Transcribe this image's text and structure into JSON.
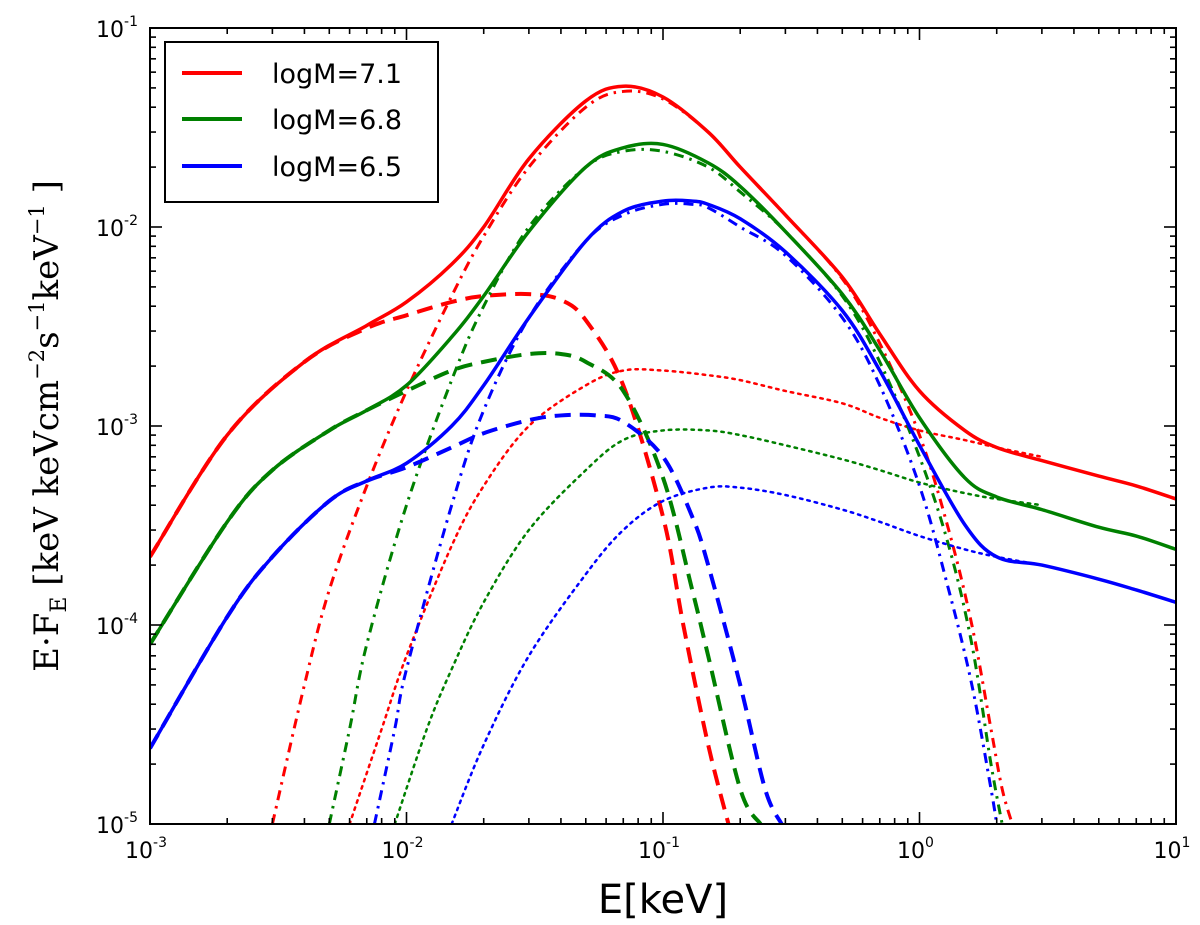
{
  "chart_data": {
    "type": "line",
    "scale": {
      "x": "log",
      "y": "log"
    },
    "xlim": [
      0.001,
      10
    ],
    "ylim": [
      1e-05,
      0.1
    ],
    "xlabel": "E[keV]",
    "ylabel": "E·F_E [keV keVcm^-2 s^-1 keV^-1]",
    "ylabel_parts": {
      "main": "E·F",
      "sub": "E",
      "units_open": " [keV keVcm",
      "exp1": "−2",
      "mid": "s",
      "exp2": "−1",
      "mid2": "keV",
      "exp3": "−1",
      "units_close": " ]"
    },
    "x_ticks": [
      {
        "value": 0.001,
        "base": "10",
        "exp": "-3"
      },
      {
        "value": 0.01,
        "base": "10",
        "exp": "-2"
      },
      {
        "value": 0.1,
        "base": "10",
        "exp": "-1"
      },
      {
        "value": 1,
        "base": "10",
        "exp": "0"
      },
      {
        "value": 10,
        "base": "10",
        "exp": "1"
      }
    ],
    "y_ticks": [
      {
        "value": 1e-05,
        "base": "10",
        "exp": "-5"
      },
      {
        "value": 0.0001,
        "base": "10",
        "exp": "-4"
      },
      {
        "value": 0.001,
        "base": "10",
        "exp": "-3"
      },
      {
        "value": 0.01,
        "base": "10",
        "exp": "-2"
      },
      {
        "value": 0.1,
        "base": "10",
        "exp": "-1"
      }
    ],
    "legend": {
      "position": "top-left",
      "entries": [
        {
          "label": "logM=7.1",
          "color": "#ff0000"
        },
        {
          "label": "logM=6.8",
          "color": "#008000"
        },
        {
          "label": "logM=6.5",
          "color": "#0000ff"
        }
      ]
    },
    "series": [
      {
        "name": "logM=7.1 total",
        "group": "logM=7.1",
        "component": "total",
        "color": "#ff0000",
        "style": "solid",
        "x": [
          0.001,
          0.002,
          0.004,
          0.007,
          0.01,
          0.015,
          0.02,
          0.03,
          0.05,
          0.07,
          0.1,
          0.15,
          0.2,
          0.3,
          0.5,
          0.7,
          1,
          1.5,
          2,
          3,
          5,
          7,
          10
        ],
        "y": [
          0.00022,
          0.0009,
          0.0021,
          0.0032,
          0.0042,
          0.0065,
          0.01,
          0.022,
          0.043,
          0.051,
          0.045,
          0.03,
          0.02,
          0.0115,
          0.0056,
          0.0029,
          0.0015,
          0.00095,
          0.00078,
          0.00067,
          0.00056,
          0.0005,
          0.00043
        ]
      },
      {
        "name": "logM=7.1 disk",
        "group": "logM=7.1",
        "component": "dashed",
        "color": "#ff0000",
        "style": "dashed",
        "x": [
          0.001,
          0.002,
          0.004,
          0.007,
          0.01,
          0.015,
          0.02,
          0.03,
          0.04,
          0.05,
          0.07,
          0.1,
          0.12,
          0.15,
          0.18
        ],
        "y": [
          0.00022,
          0.0009,
          0.0021,
          0.0031,
          0.0036,
          0.0042,
          0.0045,
          0.0046,
          0.0043,
          0.0034,
          0.0016,
          0.00035,
          0.0001,
          2.5e-05,
          1e-05
        ]
      },
      {
        "name": "logM=7.1 dash-dot",
        "group": "logM=7.1",
        "component": "dashdot",
        "color": "#ff0000",
        "style": "dashdot",
        "x": [
          0.003,
          0.004,
          0.005,
          0.007,
          0.01,
          0.015,
          0.02,
          0.03,
          0.05,
          0.07,
          0.1,
          0.15,
          0.2,
          0.3,
          0.5,
          0.7,
          1,
          1.3,
          1.6,
          1.9,
          2.1,
          2.3
        ],
        "y": [
          1e-05,
          5e-05,
          0.00015,
          0.0005,
          0.0015,
          0.0045,
          0.009,
          0.02,
          0.04,
          0.048,
          0.044,
          0.03,
          0.02,
          0.0115,
          0.0055,
          0.0026,
          0.0009,
          0.0003,
          0.0001,
          3e-05,
          1.5e-05,
          1e-05
        ]
      },
      {
        "name": "logM=7.1 dotted",
        "group": "logM=7.1",
        "component": "dotted",
        "color": "#ff0000",
        "style": "dotted",
        "x": [
          0.006,
          0.008,
          0.01,
          0.015,
          0.02,
          0.03,
          0.05,
          0.07,
          0.1,
          0.15,
          0.2,
          0.3,
          0.5,
          0.7,
          1,
          1.5,
          2,
          3
        ],
        "y": [
          1e-05,
          3e-05,
          7e-05,
          0.00025,
          0.0005,
          0.001,
          0.0016,
          0.0019,
          0.0019,
          0.0018,
          0.0017,
          0.0015,
          0.0013,
          0.0011,
          0.00095,
          0.00085,
          0.00078,
          0.0007
        ]
      },
      {
        "name": "logM=6.8 total",
        "group": "logM=6.8",
        "component": "total",
        "color": "#008000",
        "style": "solid",
        "x": [
          0.001,
          0.002,
          0.003,
          0.005,
          0.007,
          0.01,
          0.015,
          0.02,
          0.03,
          0.05,
          0.07,
          0.1,
          0.15,
          0.2,
          0.3,
          0.5,
          0.7,
          1,
          1.5,
          2,
          3,
          5,
          7,
          10
        ],
        "y": [
          8e-05,
          0.00033,
          0.0006,
          0.00095,
          0.0012,
          0.0016,
          0.0028,
          0.0045,
          0.0095,
          0.02,
          0.025,
          0.026,
          0.021,
          0.016,
          0.0095,
          0.0046,
          0.0024,
          0.0011,
          0.00055,
          0.00044,
          0.00038,
          0.00031,
          0.00028,
          0.00024
        ]
      },
      {
        "name": "logM=6.8 disk",
        "group": "logM=6.8",
        "component": "dashed",
        "color": "#008000",
        "style": "dashed",
        "x": [
          0.001,
          0.002,
          0.003,
          0.005,
          0.007,
          0.01,
          0.015,
          0.02,
          0.03,
          0.04,
          0.05,
          0.07,
          0.1,
          0.13,
          0.15,
          0.2,
          0.24
        ],
        "y": [
          8e-05,
          0.00033,
          0.0006,
          0.00095,
          0.0012,
          0.0015,
          0.0019,
          0.0021,
          0.0023,
          0.0023,
          0.0021,
          0.0015,
          0.00055,
          0.00015,
          7e-05,
          1.5e-05,
          1e-05
        ]
      },
      {
        "name": "logM=6.8 dash-dot",
        "group": "logM=6.8",
        "component": "dashdot",
        "color": "#008000",
        "style": "dashdot",
        "x": [
          0.005,
          0.006,
          0.007,
          0.01,
          0.015,
          0.02,
          0.03,
          0.05,
          0.07,
          0.1,
          0.15,
          0.2,
          0.3,
          0.5,
          0.7,
          1,
          1.3,
          1.6,
          1.9,
          2.1
        ],
        "y": [
          1e-05,
          3e-05,
          8e-05,
          0.0004,
          0.0017,
          0.004,
          0.01,
          0.02,
          0.024,
          0.024,
          0.02,
          0.015,
          0.0095,
          0.0045,
          0.0021,
          0.0007,
          0.00025,
          8e-05,
          2e-05,
          1e-05
        ]
      },
      {
        "name": "logM=6.8 dotted",
        "group": "logM=6.8",
        "component": "dotted",
        "color": "#008000",
        "style": "dotted",
        "x": [
          0.009,
          0.012,
          0.015,
          0.02,
          0.03,
          0.05,
          0.07,
          0.1,
          0.15,
          0.2,
          0.3,
          0.5,
          0.7,
          1,
          1.5,
          2,
          3
        ],
        "y": [
          1e-05,
          3e-05,
          6e-05,
          0.00013,
          0.0003,
          0.0006,
          0.00085,
          0.00095,
          0.00095,
          0.0009,
          0.0008,
          0.00068,
          0.0006,
          0.00052,
          0.00046,
          0.00043,
          0.0004
        ]
      },
      {
        "name": "logM=6.5 total",
        "group": "logM=6.5",
        "component": "total",
        "color": "#0000ff",
        "style": "solid",
        "x": [
          0.001,
          0.002,
          0.003,
          0.005,
          0.007,
          0.01,
          0.015,
          0.02,
          0.03,
          0.05,
          0.07,
          0.1,
          0.13,
          0.15,
          0.2,
          0.3,
          0.5,
          0.7,
          1,
          1.5,
          2,
          3,
          5,
          7,
          10
        ],
        "y": [
          2.4e-05,
          0.00011,
          0.00022,
          0.00042,
          0.00053,
          0.00065,
          0.001,
          0.0016,
          0.0035,
          0.0085,
          0.012,
          0.0135,
          0.0135,
          0.013,
          0.011,
          0.0075,
          0.0038,
          0.0019,
          0.0008,
          0.00032,
          0.00022,
          0.0002,
          0.00017,
          0.00015,
          0.00013
        ]
      },
      {
        "name": "logM=6.5 disk",
        "group": "logM=6.5",
        "component": "dashed",
        "color": "#0000ff",
        "style": "dashed",
        "x": [
          0.001,
          0.002,
          0.003,
          0.005,
          0.007,
          0.01,
          0.015,
          0.02,
          0.03,
          0.04,
          0.055,
          0.07,
          0.1,
          0.13,
          0.15,
          0.2,
          0.25,
          0.29
        ],
        "y": [
          2.4e-05,
          0.00011,
          0.00022,
          0.00042,
          0.00053,
          0.00062,
          0.00078,
          0.00092,
          0.00107,
          0.00113,
          0.00113,
          0.00105,
          0.0007,
          0.00035,
          0.0002,
          5e-05,
          1.5e-05,
          1e-05
        ]
      },
      {
        "name": "logM=6.5 dash-dot",
        "group": "logM=6.5",
        "component": "dashdot",
        "color": "#0000ff",
        "style": "dashdot",
        "x": [
          0.0075,
          0.009,
          0.01,
          0.015,
          0.02,
          0.03,
          0.05,
          0.07,
          0.1,
          0.13,
          0.15,
          0.2,
          0.3,
          0.5,
          0.7,
          1,
          1.3,
          1.6,
          1.9,
          2
        ],
        "y": [
          1e-05,
          3e-05,
          6e-05,
          0.0004,
          0.0012,
          0.0035,
          0.0085,
          0.0115,
          0.013,
          0.013,
          0.0125,
          0.01,
          0.0072,
          0.0035,
          0.0016,
          0.0005,
          0.00015,
          5e-05,
          1.5e-05,
          1e-05
        ]
      },
      {
        "name": "logM=6.5 dotted",
        "group": "logM=6.5",
        "component": "dotted",
        "color": "#0000ff",
        "style": "dotted",
        "x": [
          0.015,
          0.02,
          0.03,
          0.05,
          0.07,
          0.1,
          0.15,
          0.2,
          0.3,
          0.5,
          0.7,
          1,
          1.5,
          2,
          3
        ],
        "y": [
          1e-05,
          2.5e-05,
          7e-05,
          0.00018,
          0.0003,
          0.00042,
          0.00049,
          0.00049,
          0.00045,
          0.00038,
          0.00033,
          0.00028,
          0.00024,
          0.00022,
          0.0002
        ]
      }
    ]
  }
}
